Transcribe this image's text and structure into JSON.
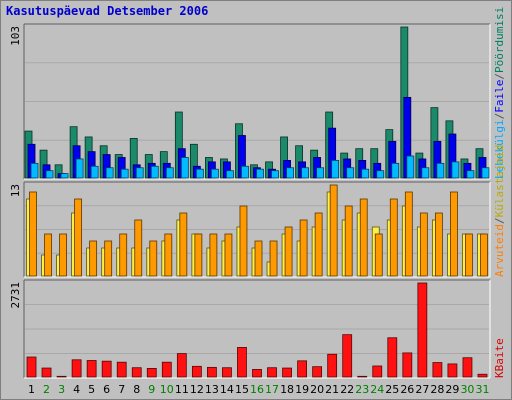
{
  "chart_data": {
    "title": "Kasutuspäevad Detsember 2006",
    "type": "bar",
    "x": [
      "1",
      "2",
      "3",
      "4",
      "5",
      "6",
      "7",
      "8",
      "9",
      "10",
      "11",
      "12",
      "13",
      "14",
      "15",
      "16",
      "17",
      "18",
      "19",
      "20",
      "21",
      "22",
      "23",
      "24",
      "25",
      "26",
      "27",
      "28",
      "29",
      "30",
      "31"
    ],
    "weekend_days": [
      2,
      3,
      9,
      10,
      16,
      17,
      23,
      24,
      30,
      31
    ],
    "panels": [
      {
        "max_label": "103",
        "ymax": 103,
        "label_parts": [
          {
            "text": "Pöördumisi",
            "color": "#007f5f"
          },
          {
            "text": "/",
            "color": "#555555"
          },
          {
            "text": "Faile",
            "color": "#0000ff"
          },
          {
            "text": "/",
            "color": "#555555"
          },
          {
            "text": "Lehekülgi",
            "color": "#00aaff"
          }
        ],
        "series": [
          {
            "name": "Pöördumisi",
            "color": "#1a8a6a",
            "values": [
              32,
              19,
              9,
              35,
              28,
              22,
              16,
              27,
              16,
              18,
              45,
              23,
              14,
              13,
              37,
              9,
              11,
              28,
              22,
              19,
              45,
              17,
              20,
              20,
              33,
              103,
              17,
              48,
              39,
              13,
              20
            ]
          },
          {
            "name": "Faile",
            "color": "#0000ee",
            "values": [
              23,
              9,
              3,
              22,
              18,
              16,
              14,
              9,
              10,
              10,
              20,
              8,
              11,
              11,
              29,
              7,
              6,
              12,
              11,
              14,
              34,
              13,
              12,
              10,
              25,
              55,
              13,
              25,
              30,
              10,
              14
            ]
          },
          {
            "name": "Lehekülgi",
            "color": "#00bbff",
            "values": [
              10,
              5,
              3,
              13,
              8,
              7,
              6,
              7,
              8,
              7,
              14,
              6,
              6,
              5,
              8,
              6,
              5,
              7,
              7,
              7,
              12,
              7,
              6,
              5,
              10,
              15,
              7,
              10,
              11,
              5,
              7
            ]
          }
        ]
      },
      {
        "max_label": "13",
        "ymax": 13,
        "label_parts": [
          {
            "text": "Külastajaid",
            "color": "#bbaa00"
          },
          {
            "text": "/",
            "color": "#555555"
          },
          {
            "text": "Arvuteid",
            "color": "#ff7f00"
          }
        ],
        "series": [
          {
            "name": "Külastajaid",
            "color": "#ffee44",
            "values": [
              11,
              3,
              3,
              9,
              4,
              4,
              4,
              4,
              4,
              5,
              8,
              6,
              4,
              5,
              7,
              4,
              2,
              6,
              5,
              7,
              12,
              8,
              9,
              7,
              8,
              10,
              7,
              8,
              6,
              6,
              6
            ]
          },
          {
            "name": "Arvuteid",
            "color": "#ff9900",
            "values": [
              12,
              6,
              6,
              11,
              5,
              5,
              6,
              8,
              5,
              6,
              9,
              6,
              6,
              6,
              10,
              5,
              5,
              7,
              8,
              9,
              13,
              10,
              11,
              6,
              11,
              12,
              9,
              9,
              12,
              6,
              6
            ]
          }
        ]
      },
      {
        "max_label": "2731",
        "ymax": 2731,
        "label_parts": [
          {
            "text": "KBaite",
            "color": "#dd0000"
          }
        ],
        "series": [
          {
            "name": "KBaite",
            "color": "#ff1111",
            "values": [
              580,
              260,
              20,
              500,
              480,
              460,
              430,
              270,
              250,
              430,
              680,
              310,
              280,
              270,
              860,
              220,
              270,
              260,
              470,
              300,
              660,
              1230,
              20,
              320,
              1140,
              700,
              2731,
              420,
              380,
              560,
              80
            ]
          }
        ]
      }
    ]
  }
}
